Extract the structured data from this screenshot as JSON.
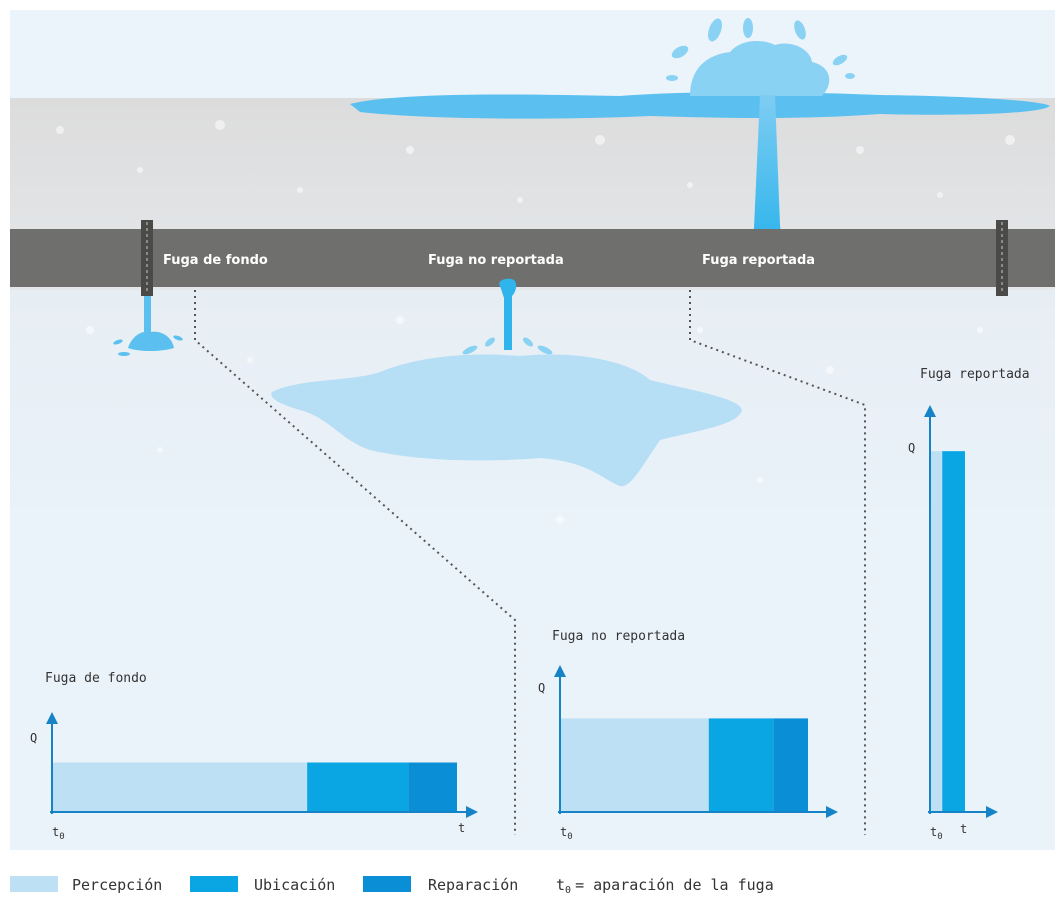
{
  "pipe_labels": {
    "background": "Fuga de fondo",
    "unreported": "Fuga no reportada",
    "reported": "Fuga reportada"
  },
  "charts": [
    {
      "id": "background",
      "title": "Fuga de fondo",
      "y_axis": "Q",
      "x_axis": "t",
      "t0_label": "t",
      "t0_sub": "0",
      "phases": [
        {
          "name": "Percepción",
          "duration": 0.63
        },
        {
          "name": "Ubicación",
          "duration": 0.25
        },
        {
          "name": "Reparación",
          "duration": 0.12
        }
      ],
      "level": 0.55
    },
    {
      "id": "unreported",
      "title": "Fuga no reportada",
      "y_axis": "Q",
      "x_axis": "t",
      "t0_label": "t",
      "t0_sub": "0",
      "phases": [
        {
          "name": "Percepción",
          "duration": 0.6
        },
        {
          "name": "Ubicación",
          "duration": 0.26
        },
        {
          "name": "Reparación",
          "duration": 0.14
        }
      ],
      "level": 0.78
    },
    {
      "id": "reported",
      "title": "Fuga reportada",
      "y_axis": "Q",
      "x_axis": "t",
      "t0_label": "t",
      "t0_sub": "0",
      "phases": [
        {
          "name": "Percepción",
          "duration": 0.35
        },
        {
          "name": "Ubicación",
          "duration": 0.65
        },
        {
          "name": "Reparación",
          "duration": 0
        }
      ],
      "level": 0.93
    }
  ],
  "legend": {
    "percepcion": "Percepción",
    "ubicacion": "Ubicación",
    "reparacion": "Reparación",
    "t0_symbol": "t",
    "t0_sub": "0",
    "t0_text": "= aparación de la fuga"
  },
  "colors": {
    "percepcion": "#bde0f5",
    "ubicacion": "#0aa5e3",
    "reparacion": "#0a8fd6",
    "axis": "#1583c6",
    "pipe": "#6f6f6d",
    "soil_top": "#d9d9d9",
    "soil_bottom": "#eef4fa",
    "water": "#8ad2f3"
  }
}
